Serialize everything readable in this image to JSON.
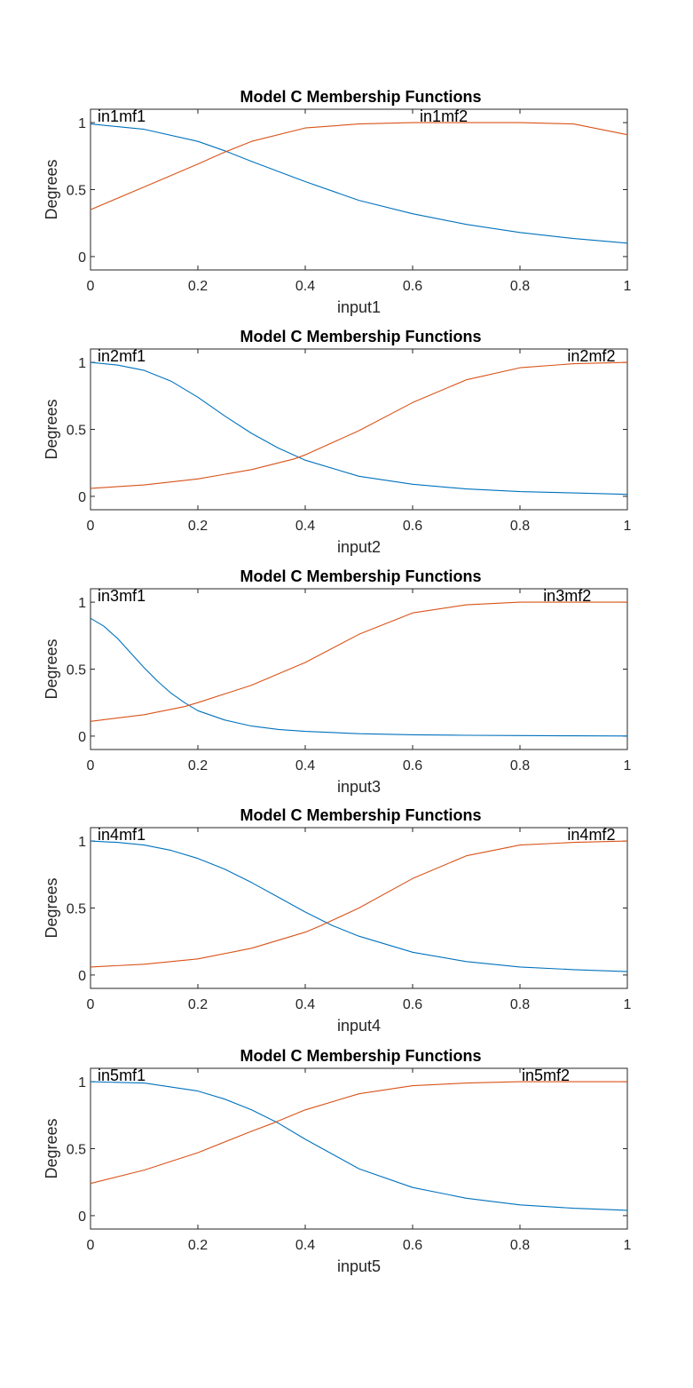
{
  "chart_data": [
    {
      "type": "line",
      "title": "Model C Membership Functions",
      "xlabel": "input1",
      "ylabel": "Degrees",
      "xlim": [
        0,
        1
      ],
      "ylim": [
        -0.1,
        1.1
      ],
      "xticks": [
        "0",
        "0.2",
        "0.4",
        "0.6",
        "0.8",
        "1"
      ],
      "yticks": [
        "0",
        "0.5",
        "1"
      ],
      "grid": false,
      "series": [
        {
          "name": "in1mf1",
          "color": "#0072BD",
          "label_x": 0.01,
          "x": [
            0,
            0.1,
            0.2,
            0.25,
            0.3,
            0.4,
            0.5,
            0.6,
            0.7,
            0.8,
            0.9,
            1.0
          ],
          "values": [
            0.99,
            0.95,
            0.86,
            0.79,
            0.71,
            0.56,
            0.42,
            0.32,
            0.24,
            0.18,
            0.135,
            0.1
          ]
        },
        {
          "name": "in1mf2",
          "color": "#D95319",
          "label_x": 0.61,
          "x": [
            0,
            0.1,
            0.2,
            0.25,
            0.3,
            0.4,
            0.5,
            0.6,
            0.7,
            0.8,
            0.9,
            1.0
          ],
          "values": [
            0.35,
            0.52,
            0.69,
            0.78,
            0.86,
            0.96,
            0.99,
            1.0,
            1.0,
            1.0,
            0.99,
            0.91
          ]
        }
      ]
    },
    {
      "type": "line",
      "title": "Model C Membership Functions",
      "xlabel": "input2",
      "ylabel": "Degrees",
      "xlim": [
        0,
        1
      ],
      "ylim": [
        -0.1,
        1.1
      ],
      "xticks": [
        "0",
        "0.2",
        "0.4",
        "0.6",
        "0.8",
        "1"
      ],
      "yticks": [
        "0",
        "0.5",
        "1"
      ],
      "grid": false,
      "series": [
        {
          "name": "in2mf1",
          "color": "#0072BD",
          "label_x": 0.01,
          "x": [
            0,
            0.05,
            0.1,
            0.15,
            0.2,
            0.25,
            0.3,
            0.35,
            0.4,
            0.5,
            0.6,
            0.7,
            0.8,
            0.9,
            1.0
          ],
          "values": [
            1.0,
            0.98,
            0.94,
            0.86,
            0.74,
            0.6,
            0.47,
            0.36,
            0.27,
            0.15,
            0.09,
            0.055,
            0.035,
            0.025,
            0.015
          ]
        },
        {
          "name": "in2mf2",
          "color": "#D95319",
          "label_x": 0.885,
          "x": [
            0,
            0.1,
            0.2,
            0.3,
            0.38,
            0.4,
            0.5,
            0.6,
            0.7,
            0.8,
            0.9,
            1.0
          ],
          "values": [
            0.06,
            0.085,
            0.13,
            0.2,
            0.28,
            0.31,
            0.49,
            0.7,
            0.87,
            0.96,
            0.99,
            1.0
          ]
        }
      ]
    },
    {
      "type": "line",
      "title": "Model C Membership Functions",
      "xlabel": "input3",
      "ylabel": "Degrees",
      "xlim": [
        0,
        1
      ],
      "ylim": [
        -0.1,
        1.1
      ],
      "xticks": [
        "0",
        "0.2",
        "0.4",
        "0.6",
        "0.8",
        "1"
      ],
      "yticks": [
        "0",
        "0.5",
        "1"
      ],
      "grid": false,
      "series": [
        {
          "name": "in3mf1",
          "color": "#0072BD",
          "label_x": 0.01,
          "x": [
            0,
            0.025,
            0.05,
            0.075,
            0.1,
            0.125,
            0.15,
            0.175,
            0.2,
            0.25,
            0.3,
            0.35,
            0.4,
            0.5,
            0.6,
            0.7,
            0.8,
            0.9,
            1.0
          ],
          "values": [
            0.88,
            0.82,
            0.73,
            0.62,
            0.51,
            0.41,
            0.32,
            0.25,
            0.19,
            0.12,
            0.075,
            0.05,
            0.035,
            0.018,
            0.01,
            0.006,
            0.004,
            0.002,
            0.001
          ]
        },
        {
          "name": "in3mf2",
          "color": "#D95319",
          "label_x": 0.84,
          "x": [
            0,
            0.1,
            0.175,
            0.2,
            0.3,
            0.4,
            0.5,
            0.6,
            0.7,
            0.8,
            0.9,
            1.0
          ],
          "values": [
            0.11,
            0.16,
            0.22,
            0.25,
            0.38,
            0.55,
            0.76,
            0.92,
            0.98,
            1.0,
            1.0,
            1.0
          ]
        }
      ]
    },
    {
      "type": "line",
      "title": "Model C Membership Functions",
      "xlabel": "input4",
      "ylabel": "Degrees",
      "xlim": [
        0,
        1
      ],
      "ylim": [
        -0.1,
        1.1
      ],
      "xticks": [
        "0",
        "0.2",
        "0.4",
        "0.6",
        "0.8",
        "1"
      ],
      "yticks": [
        "0",
        "0.5",
        "1"
      ],
      "grid": false,
      "series": [
        {
          "name": "in4mf1",
          "color": "#0072BD",
          "label_x": 0.01,
          "x": [
            0,
            0.05,
            0.1,
            0.15,
            0.2,
            0.25,
            0.3,
            0.35,
            0.4,
            0.45,
            0.5,
            0.6,
            0.7,
            0.8,
            0.9,
            1.0
          ],
          "values": [
            1.0,
            0.99,
            0.97,
            0.93,
            0.87,
            0.79,
            0.69,
            0.58,
            0.47,
            0.37,
            0.29,
            0.17,
            0.1,
            0.06,
            0.04,
            0.025
          ]
        },
        {
          "name": "in4mf2",
          "color": "#D95319",
          "label_x": 0.885,
          "x": [
            0,
            0.1,
            0.2,
            0.3,
            0.4,
            0.43,
            0.5,
            0.6,
            0.7,
            0.8,
            0.9,
            1.0
          ],
          "values": [
            0.06,
            0.08,
            0.12,
            0.2,
            0.32,
            0.37,
            0.5,
            0.72,
            0.89,
            0.97,
            0.99,
            1.0
          ]
        }
      ]
    },
    {
      "type": "line",
      "title": "Model C Membership Functions",
      "xlabel": "input5",
      "ylabel": "Degrees",
      "xlim": [
        0,
        1
      ],
      "ylim": [
        -0.1,
        1.1
      ],
      "xticks": [
        "0",
        "0.2",
        "0.4",
        "0.6",
        "0.8",
        "1"
      ],
      "yticks": [
        "0",
        "0.5",
        "1"
      ],
      "grid": false,
      "series": [
        {
          "name": "in5mf1",
          "color": "#0072BD",
          "label_x": 0.01,
          "x": [
            0,
            0.1,
            0.2,
            0.25,
            0.3,
            0.35,
            0.4,
            0.45,
            0.5,
            0.6,
            0.7,
            0.8,
            0.9,
            1.0
          ],
          "values": [
            1.0,
            0.99,
            0.93,
            0.87,
            0.79,
            0.69,
            0.57,
            0.46,
            0.35,
            0.21,
            0.13,
            0.08,
            0.055,
            0.04
          ]
        },
        {
          "name": "in5mf2",
          "color": "#D95319",
          "label_x": 0.8,
          "x": [
            0,
            0.1,
            0.2,
            0.3,
            0.34,
            0.4,
            0.5,
            0.6,
            0.7,
            0.8,
            0.9,
            1.0
          ],
          "values": [
            0.24,
            0.34,
            0.47,
            0.63,
            0.69,
            0.79,
            0.91,
            0.97,
            0.99,
            1.0,
            1.0,
            1.0
          ]
        }
      ]
    }
  ]
}
